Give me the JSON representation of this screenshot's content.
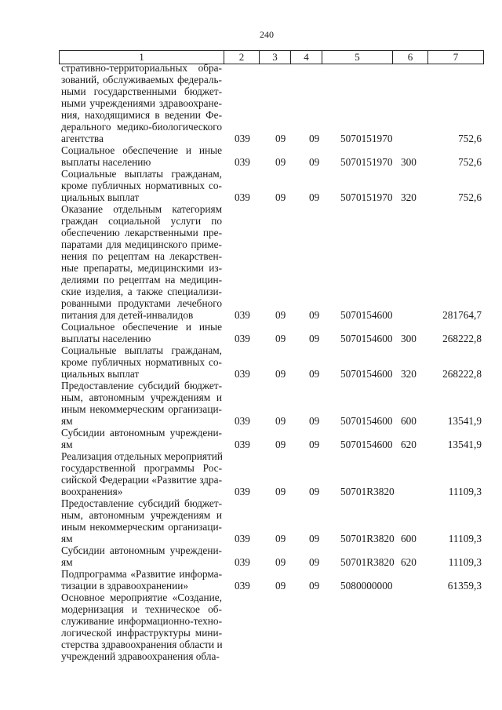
{
  "page_number": "240",
  "table": {
    "header": [
      "1",
      "2",
      "3",
      "4",
      "5",
      "6",
      "7"
    ],
    "rows": [
      {
        "lines": [
          "стративно-территориальных обра-",
          "зований, обслуживаемых федераль-",
          "ными государственными бюджет-",
          "ными учреждениями здравоохране-",
          "ния, находящимися в ведении Фе-",
          "дерального медико-биологического",
          "агентства"
        ],
        "c2": "039",
        "c3": "09",
        "c4": "09",
        "c5": "5070151970",
        "c6": "",
        "c7": "752,6"
      },
      {
        "lines": [
          "Социальное обеспечение и иные",
          "выплаты населению"
        ],
        "c2": "039",
        "c3": "09",
        "c4": "09",
        "c5": "5070151970",
        "c6": "300",
        "c7": "752,6"
      },
      {
        "lines": [
          "Социальные выплаты гражданам,",
          "кроме публичных нормативных со-",
          "циальных выплат"
        ],
        "c2": "039",
        "c3": "09",
        "c4": "09",
        "c5": "5070151970",
        "c6": "320",
        "c7": "752,6"
      },
      {
        "lines": [
          "Оказание отдельным категориям",
          "граждан социальной услуги по",
          "обеспечению лекарственными пре-",
          "паратами для медицинского приме-",
          "нения по рецептам на лекарствен-",
          "ные препараты, медицинскими из-",
          "делиями по рецептам на медицин-",
          "ские изделия, а также специализи-",
          "рованными продуктами лечебного",
          "питания для детей-инвалидов"
        ],
        "c2": "039",
        "c3": "09",
        "c4": "09",
        "c5": "5070154600",
        "c6": "",
        "c7": "281764,7"
      },
      {
        "lines": [
          "Социальное обеспечение и иные",
          "выплаты населению"
        ],
        "c2": "039",
        "c3": "09",
        "c4": "09",
        "c5": "5070154600",
        "c6": "300",
        "c7": "268222,8"
      },
      {
        "lines": [
          "Социальные выплаты гражданам,",
          "кроме публичных нормативных со-",
          "циальных выплат"
        ],
        "c2": "039",
        "c3": "09",
        "c4": "09",
        "c5": "5070154600",
        "c6": "320",
        "c7": "268222,8"
      },
      {
        "lines": [
          "Предоставление субсидий бюджет-",
          "ным, автономным учреждениям и",
          "иным некоммерческим организаци-",
          "ям"
        ],
        "c2": "039",
        "c3": "09",
        "c4": "09",
        "c5": "5070154600",
        "c6": "600",
        "c7": "13541,9"
      },
      {
        "lines": [
          "Субсидии автономным учреждени-",
          "ям"
        ],
        "c2": "039",
        "c3": "09",
        "c4": "09",
        "c5": "5070154600",
        "c6": "620",
        "c7": "13541,9"
      },
      {
        "lines": [
          "Реализация отдельных мероприятий",
          "государственной программы Рос-",
          "сийской Федерации «Развитие здра-",
          "воохранения»"
        ],
        "c2": "039",
        "c3": "09",
        "c4": "09",
        "c5": "50701R3820",
        "c6": "",
        "c7": "11109,3"
      },
      {
        "lines": [
          "Предоставление субсидий бюджет-",
          "ным, автономным учреждениям и",
          "иным некоммерческим организаци-",
          "ям"
        ],
        "c2": "039",
        "c3": "09",
        "c4": "09",
        "c5": "50701R3820",
        "c6": "600",
        "c7": "11109,3"
      },
      {
        "lines": [
          "Субсидии автономным учреждени-",
          "ям"
        ],
        "c2": "039",
        "c3": "09",
        "c4": "09",
        "c5": "50701R3820",
        "c6": "620",
        "c7": "11109,3"
      },
      {
        "lines": [
          "Подпрограмма «Развитие информа-",
          "тизации в здравоохранении»"
        ],
        "c2": "039",
        "c3": "09",
        "c4": "09",
        "c5": "5080000000",
        "c6": "",
        "c7": "61359,3"
      },
      {
        "lines": [
          "Основное мероприятие «Создание,",
          "модернизация и техническое об-",
          "служивание информационно-техно-",
          "логической инфраструктуры мини-",
          "стерства здравоохранения области и",
          "учреждений здравоохранения обла-"
        ],
        "c2": "",
        "c3": "",
        "c4": "",
        "c5": "",
        "c6": "",
        "c7": ""
      }
    ]
  }
}
